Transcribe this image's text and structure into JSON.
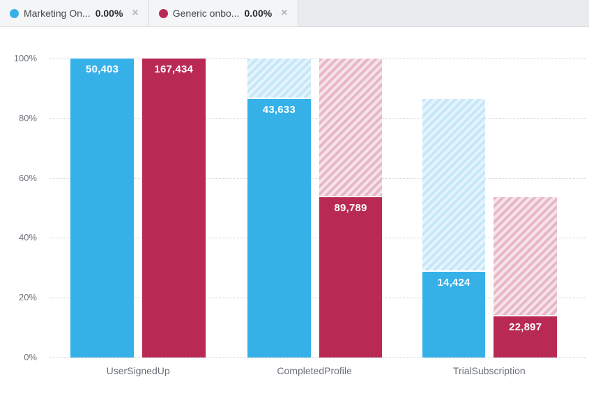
{
  "legend": {
    "items": [
      {
        "label": "Marketing On...",
        "value": "0.00%",
        "color": "#36b1e8",
        "close_icon": "×"
      },
      {
        "label": "Generic onbo...",
        "value": "0.00%",
        "color": "#b82953",
        "close_icon": "×"
      }
    ]
  },
  "chart_data": {
    "type": "bar",
    "subtype": "funnel-comparison",
    "title": "",
    "categories": [
      "UserSignedUp",
      "CompletedProfile",
      "TrialSubscription"
    ],
    "series": [
      {
        "name": "Marketing On...",
        "color": "#36b1e8",
        "hatch_colors": [
          "#c6e7f7",
          "#e5f4fc"
        ],
        "values": [
          50403,
          43633,
          14424
        ],
        "value_labels": [
          "50,403",
          "43,633",
          "14,424"
        ],
        "percent_of_first": [
          100,
          86.57,
          28.62
        ]
      },
      {
        "name": "Generic onbo...",
        "color": "#b82953",
        "hatch_colors": [
          "#e7b7c8",
          "#f6e3ea"
        ],
        "values": [
          167434,
          89789,
          22897
        ],
        "value_labels": [
          "167,434",
          "89,789",
          "22,897"
        ],
        "percent_of_first": [
          100,
          53.63,
          13.68
        ]
      }
    ],
    "y_ticks": [
      "100%",
      "80%",
      "60%",
      "40%",
      "20%",
      "0%"
    ],
    "ylim": [
      0,
      100
    ],
    "grid": "dotted-horizontal",
    "legend_position": "top"
  }
}
